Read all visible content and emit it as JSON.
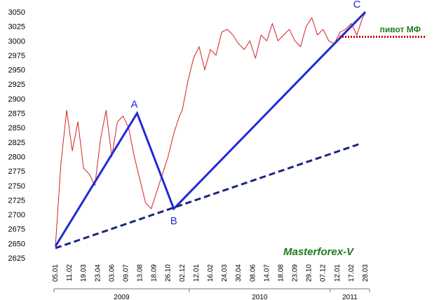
{
  "chart_data": {
    "type": "line",
    "title": "",
    "xlabel": "",
    "ylabel": "",
    "ylim": [
      2625,
      3050
    ],
    "y_ticks": [
      2625,
      2650,
      2675,
      2700,
      2725,
      2750,
      2775,
      2800,
      2825,
      2850,
      2875,
      2900,
      2925,
      2950,
      2975,
      3000,
      3025,
      3050
    ],
    "x_tick_labels": [
      "05.01",
      "11.02",
      "19.03",
      "23.04",
      "03.06",
      "09.07",
      "13.08",
      "18.09",
      "26.10",
      "02.12",
      "12.01",
      "16.02",
      "24.03",
      "30.04",
      "08.06",
      "14.07",
      "18.08",
      "23.09",
      "29.10",
      "07.12",
      "12.01",
      "17.02",
      "28.03"
    ],
    "years": [
      {
        "label": "2009",
        "from_tick": 0,
        "to_tick": 9
      },
      {
        "label": "2010",
        "from_tick": 10,
        "to_tick": 19
      },
      {
        "label": "2011",
        "from_tick": 20,
        "to_tick": 22
      }
    ],
    "grid": false,
    "series": [
      {
        "color": "#d42020",
        "x": [
          0,
          0.4,
          0.8,
          1.2,
          1.6,
          2.0,
          2.4,
          2.8,
          3.2,
          3.6,
          4.0,
          4.4,
          4.8,
          5.2,
          5.6,
          6.0,
          6.4,
          6.8,
          7.2,
          7.6,
          8.0,
          8.4,
          8.8,
          9.0,
          9.4,
          9.8,
          10.2,
          10.6,
          11.0,
          11.4,
          11.8,
          12.2,
          12.6,
          13.0,
          13.4,
          13.8,
          14.2,
          14.6,
          15.0,
          15.4,
          15.8,
          16.2,
          16.6,
          17.0,
          17.4,
          17.8,
          18.2,
          18.6,
          19.0,
          19.4,
          19.8,
          20.2,
          20.6,
          21.0,
          21.4,
          21.8,
          22.0
        ],
        "values": [
          2645,
          2790,
          2880,
          2810,
          2860,
          2780,
          2770,
          2750,
          2830,
          2880,
          2800,
          2860,
          2870,
          2850,
          2800,
          2760,
          2720,
          2710,
          2740,
          2770,
          2800,
          2840,
          2870,
          2880,
          2930,
          2970,
          2990,
          2950,
          2985,
          2975,
          3015,
          3020,
          3010,
          2995,
          2985,
          3000,
          2970,
          3010,
          3000,
          3030,
          3000,
          3010,
          3020,
          3000,
          2990,
          3025,
          3040,
          3010,
          3020,
          3000,
          2995,
          3015,
          3020,
          3030,
          3010,
          3040,
          3048
        ]
      }
    ],
    "overlays": [
      {
        "kind": "wave",
        "color": "#1f2bd6",
        "points": [
          [
            0,
            2645
          ],
          [
            5.8,
            2875
          ],
          [
            8.4,
            2710
          ],
          [
            22.0,
            3050
          ]
        ],
        "labels": [
          "A",
          "B",
          "C"
        ]
      },
      {
        "kind": "trend",
        "color": "#1c2580",
        "dashed": true,
        "points": [
          [
            0,
            2642
          ],
          [
            21.6,
            2822
          ]
        ]
      },
      {
        "kind": "pivot",
        "color": "#cc0000",
        "dotted": true,
        "y": 3007,
        "label": "пивот МФ"
      }
    ],
    "watermark": "Masterforex-V"
  }
}
